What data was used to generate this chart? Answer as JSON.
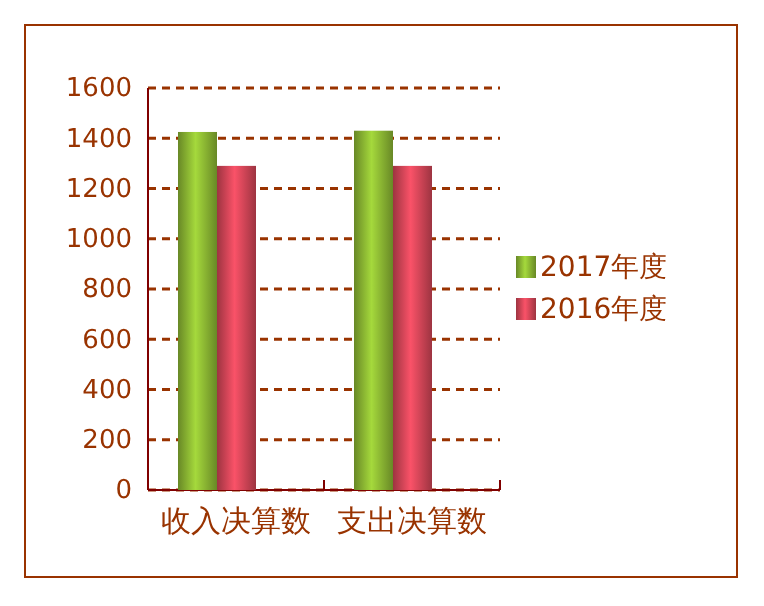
{
  "chart_data": {
    "type": "bar",
    "categories": [
      "收入决算数",
      "支出决算数"
    ],
    "series": [
      {
        "name": "2017年度",
        "color": "#8fbc34",
        "values": [
          1425,
          1430
        ]
      },
      {
        "name": "2016年度",
        "color": "#d9475a",
        "values": [
          1290,
          1290
        ]
      }
    ],
    "ylim": [
      0,
      1600
    ],
    "yticks": [
      0,
      200,
      400,
      600,
      800,
      1000,
      1200,
      1400,
      1600
    ],
    "grid": "y",
    "legend": "right"
  }
}
